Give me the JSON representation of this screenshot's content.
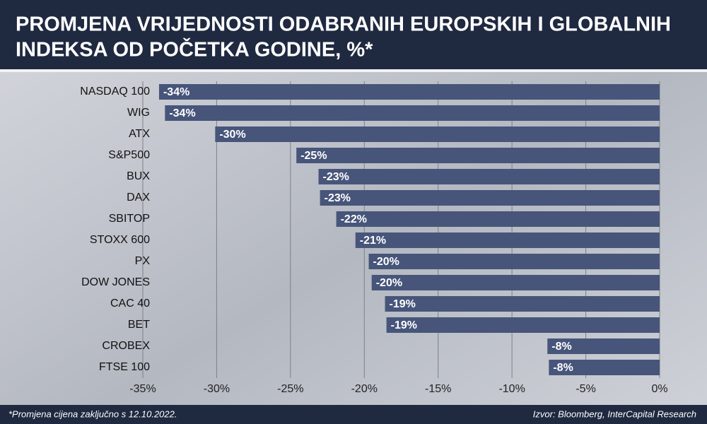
{
  "chart_data": {
    "type": "bar",
    "title": [
      "PROMJENA VRIJEDNOSTI ODABRANIH EUROPSKIH I GLOBALNIH",
      "INDEKSA OD POČETKA GODINE, %*"
    ],
    "categories": [
      "NASDAQ 100",
      "WIG",
      "ATX",
      "S&P500",
      "BUX",
      "DAX",
      "SBITOP",
      "STOXX 600",
      "PX",
      "DOW JONES",
      "CAC 40",
      "BET",
      "CROBEX",
      "FTSE 100"
    ],
    "values": [
      -33.9,
      -33.5,
      -30.1,
      -24.6,
      -23.1,
      -23.0,
      -21.9,
      -20.6,
      -19.7,
      -19.5,
      -18.6,
      -18.5,
      -7.6,
      -7.5
    ],
    "value_labels": [
      "-34%",
      "-34%",
      "-30%",
      "-25%",
      "-23%",
      "-23%",
      "-22%",
      "-21%",
      "-20%",
      "-20%",
      "-19%",
      "-19%",
      "-8%",
      "-8%"
    ],
    "color": "#47557a",
    "xlim": [
      -35,
      0
    ],
    "xticks": [
      {
        "value": -35,
        "label": "-35%"
      },
      {
        "value": -30,
        "label": "-30%"
      },
      {
        "value": -25,
        "label": "-25%"
      },
      {
        "value": -20,
        "label": "-20%"
      },
      {
        "value": -15,
        "label": "-15%"
      },
      {
        "value": -10,
        "label": "-10%"
      },
      {
        "value": -5,
        "label": "-5%"
      },
      {
        "value": 0,
        "label": "0%"
      }
    ],
    "grid": true,
    "note": "*Promjena cijena zaključno s 12.10.2022.",
    "source": "Izvor: Bloomberg, InterCapital Research"
  }
}
